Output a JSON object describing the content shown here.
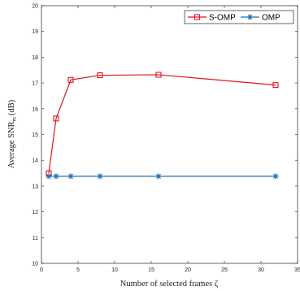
{
  "chart_data": {
    "type": "line",
    "title": "",
    "xlabel": "Number of selected frames ζ",
    "ylabel": "Average SNR",
    "ylabel_sub": "m",
    "ylabel_unit": "(dB)",
    "xlim": [
      0,
      35
    ],
    "ylim": [
      10,
      20
    ],
    "xticks": [
      0,
      5,
      10,
      15,
      20,
      25,
      30,
      35
    ],
    "yticks": [
      10,
      11,
      12,
      13,
      14,
      15,
      16,
      17,
      18,
      19,
      20
    ],
    "grid": false,
    "legend_position": "top-right",
    "series": [
      {
        "name": "S-OMP",
        "color": "#e0141e",
        "marker": "square",
        "x": [
          1,
          2,
          4,
          8,
          16,
          32
        ],
        "y": [
          13.5,
          15.62,
          17.12,
          17.3,
          17.32,
          16.92
        ]
      },
      {
        "name": "OMP",
        "color": "#1f6fb4",
        "marker": "asterisk",
        "x": [
          1,
          2,
          4,
          8,
          16,
          32
        ],
        "y": [
          13.38,
          13.38,
          13.38,
          13.38,
          13.38,
          13.38
        ]
      }
    ]
  }
}
